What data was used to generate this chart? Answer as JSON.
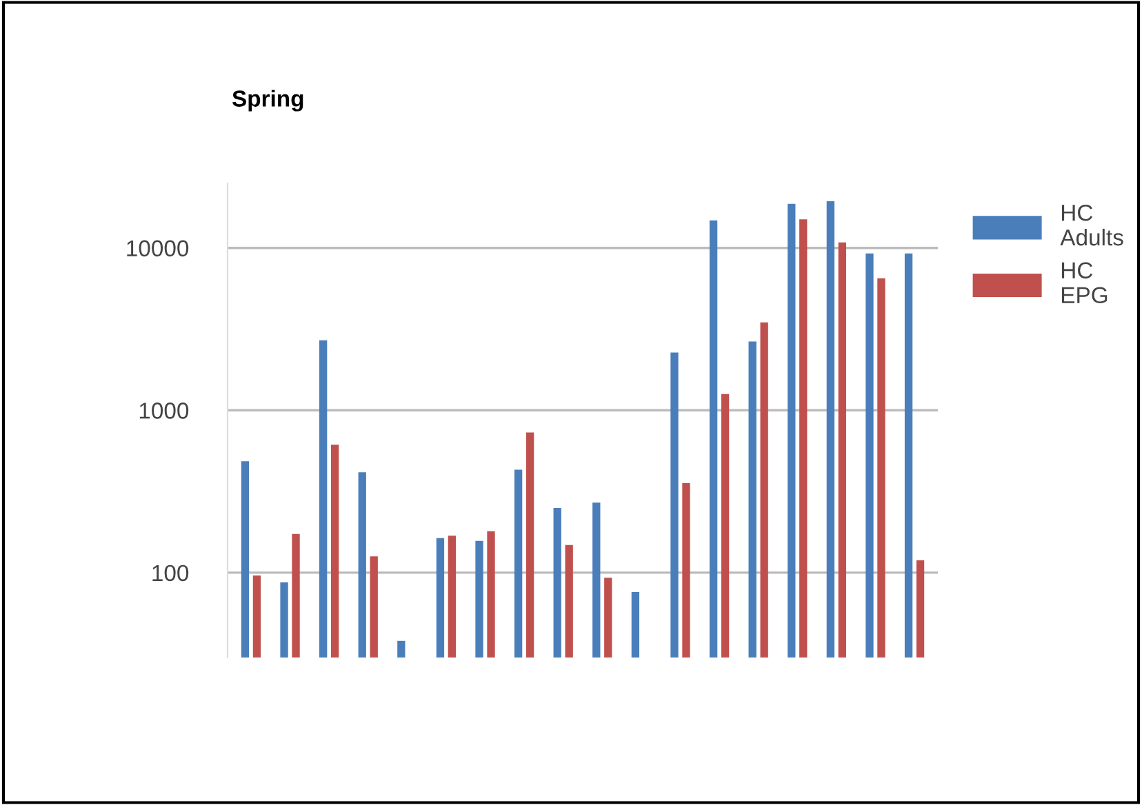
{
  "chart_data": {
    "type": "bar",
    "title": "Spring",
    "categories": [
      null,
      null,
      null,
      null,
      null,
      null,
      null,
      null,
      null,
      null,
      null,
      null,
      null,
      null,
      null,
      null,
      null,
      null
    ],
    "series": [
      {
        "name": "HC Adults",
        "color": "#4a7ebb",
        "values": [
          485,
          87,
          2700,
          415,
          38,
          163,
          157,
          430,
          250,
          270,
          76,
          2270,
          14800,
          2650,
          18700,
          19400,
          9250,
          9250
        ]
      },
      {
        "name": "HC EPG",
        "color": "#c0504d",
        "values": [
          96,
          173,
          614,
          126,
          null,
          169,
          180,
          730,
          148,
          93,
          null,
          356,
          1260,
          3480,
          15000,
          10800,
          6500,
          119
        ]
      }
    ],
    "log": "y",
    "ylim": [
      30,
      25000
    ],
    "yticks": [
      100,
      1000,
      10000
    ],
    "grid": "y",
    "legend": "right"
  }
}
